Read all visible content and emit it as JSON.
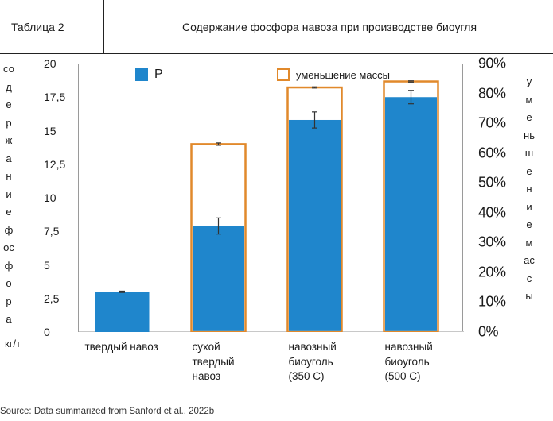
{
  "header": {
    "table_label": "Таблица 2",
    "title": "Содержание фосфора навоза при производстве биоугля"
  },
  "axes": {
    "left_label": "содержание фосфора",
    "left_unit": "кг/т",
    "right_label": "уменьшение массы"
  },
  "legend": {
    "p_label": "P",
    "mass_label": "уменьшение массы"
  },
  "source": "Source: Data summarized from Sanford et al., 2022b",
  "colors": {
    "p_fill": "#1f86cc",
    "mass_outline": "#e1892b",
    "error_bar": "#333333"
  },
  "chart_data": {
    "type": "bar",
    "categories": [
      "твердый навоз",
      "сухой твердый навоз",
      "навозный биоуголь (350 С)",
      "навозный биоуголь (500 С)"
    ],
    "series": [
      {
        "name": "P",
        "axis": "left",
        "values": [
          3.0,
          7.9,
          15.8,
          17.5
        ],
        "error": [
          0.05,
          0.6,
          0.6,
          0.5
        ]
      },
      {
        "name": "уменьшение массы",
        "axis": "right",
        "values": [
          null,
          0.63,
          0.82,
          0.84
        ],
        "error": [
          null,
          0.004,
          0.002,
          0.002
        ]
      }
    ],
    "ylim_left": [
      0,
      20
    ],
    "yticks_left": [
      "0",
      "2,5",
      "5",
      "7,5",
      "10",
      "12,5",
      "15",
      "17,5",
      "20"
    ],
    "ylim_right": [
      0,
      0.9
    ],
    "yticks_right": [
      "0%",
      "10%",
      "20%",
      "30%",
      "40%",
      "50%",
      "60%",
      "70%",
      "80%",
      "90%"
    ],
    "grid": false,
    "legend_position": "top"
  }
}
